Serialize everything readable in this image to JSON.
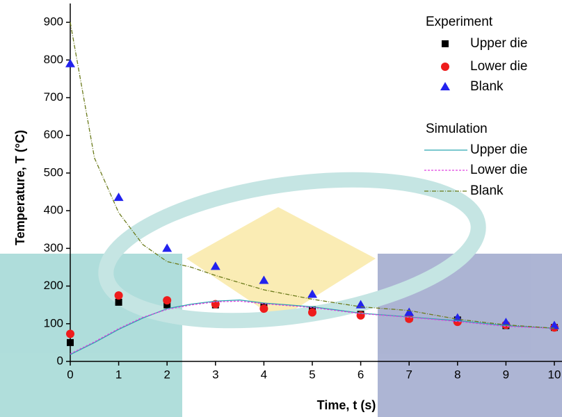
{
  "chart_data": {
    "type": "scatter",
    "x_label": "Time, t (s)",
    "y_label": "Temperature, T (°C)",
    "xlim": [
      0,
      10
    ],
    "ylim": [
      0,
      950
    ],
    "xticks": [
      0,
      1,
      2,
      3,
      4,
      5,
      6,
      7,
      8,
      9,
      10
    ],
    "yticks": [
      0,
      100,
      200,
      300,
      400,
      500,
      600,
      700,
      800,
      900
    ],
    "series_groups": [
      {
        "title": "Experiment",
        "series": [
          {
            "name": "Upper die",
            "marker": "square",
            "color": "#000000",
            "x": [
              0,
              1,
              2,
              3,
              4,
              5,
              6,
              7,
              8,
              9,
              10
            ],
            "values": [
              50,
              157,
              150,
              150,
              145,
              137,
              125,
              115,
              110,
              95,
              90
            ]
          },
          {
            "name": "Lower die",
            "marker": "circle",
            "color": "#ee1c1c",
            "x": [
              0,
              1,
              2,
              3,
              4,
              5,
              6,
              7,
              8,
              9,
              10
            ],
            "values": [
              73,
              175,
              162,
              152,
              140,
              130,
              122,
              113,
              105,
              97,
              90
            ]
          },
          {
            "name": "Blank",
            "marker": "triangle",
            "color": "#2222ee",
            "x": [
              0,
              1,
              2,
              3,
              4,
              5,
              6,
              7,
              8,
              9,
              10
            ],
            "values": [
              790,
              435,
              300,
              252,
              215,
              178,
              150,
              130,
              115,
              103,
              95
            ]
          }
        ]
      },
      {
        "title": "Simulation",
        "series": [
          {
            "name": "Upper die",
            "line": "solid",
            "color": "#2aa6b0",
            "x": [
              0,
              0.5,
              1,
              1.5,
              2,
              2.5,
              3,
              3.5,
              4,
              5,
              6,
              7,
              8,
              9,
              10
            ],
            "values": [
              18,
              50,
              85,
              115,
              140,
              152,
              160,
              163,
              155,
              145,
              128,
              118,
              108,
              95,
              88
            ]
          },
          {
            "name": "Lower die",
            "line": "dashed",
            "color": "#e040e0",
            "x": [
              0,
              0.5,
              1,
              1.5,
              2,
              2.5,
              3,
              3.5,
              4,
              5,
              6,
              7,
              8,
              9,
              10
            ],
            "values": [
              20,
              52,
              87,
              117,
              138,
              150,
              158,
              160,
              153,
              143,
              127,
              117,
              106,
              93,
              88
            ]
          },
          {
            "name": "Blank",
            "line": "dashdot",
            "color": "#6b7a1a",
            "x": [
              0,
              0.5,
              1,
              1.5,
              2,
              2.5,
              3,
              4,
              5,
              6,
              7,
              8,
              9,
              10
            ],
            "values": [
              900,
              540,
              395,
              310,
              265,
              250,
              228,
              190,
              165,
              145,
              135,
              112,
              97,
              88
            ]
          }
        ]
      }
    ]
  }
}
